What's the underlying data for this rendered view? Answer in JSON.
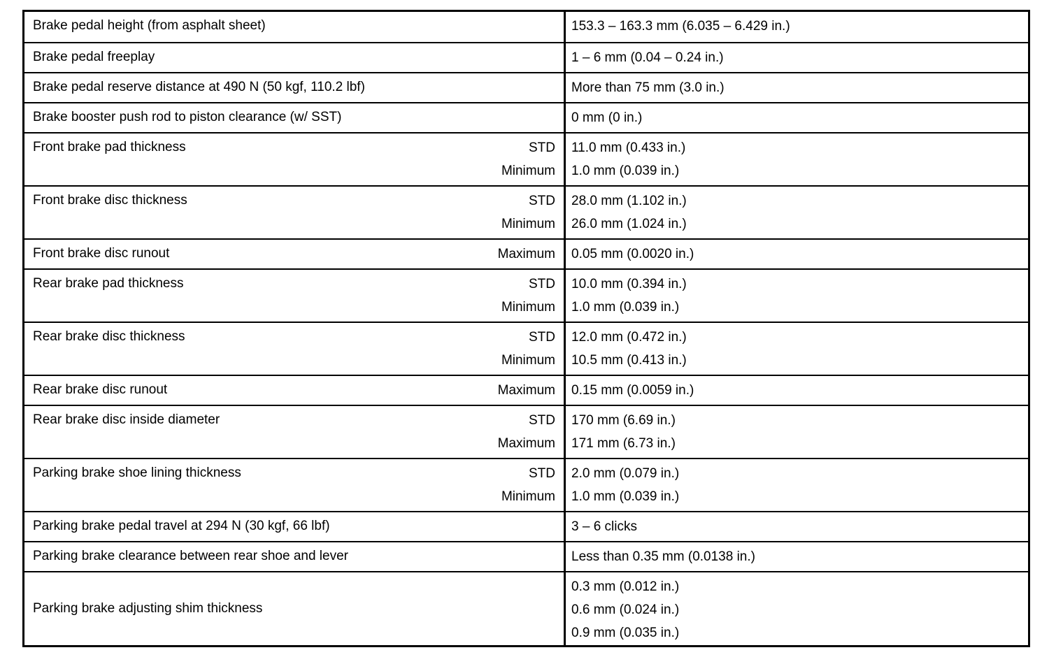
{
  "rows": [
    {
      "label": "Brake pedal height (from asphalt sheet)",
      "qualifiers": [],
      "values": [
        "153.3 – 163.3 mm (6.035 – 6.429 in.)"
      ]
    },
    {
      "label": "Brake pedal freeplay",
      "qualifiers": [],
      "values": [
        "1 – 6 mm (0.04 – 0.24 in.)"
      ]
    },
    {
      "label": "Brake pedal reserve distance at 490 N (50 kgf, 110.2 lbf)",
      "qualifiers": [],
      "values": [
        "More than 75 mm (3.0 in.)"
      ]
    },
    {
      "label": "Brake booster push rod to piston clearance (w/ SST)",
      "qualifiers": [],
      "values": [
        "0 mm (0 in.)"
      ]
    },
    {
      "label": "Front brake pad thickness",
      "qualifiers": [
        "STD",
        "Minimum"
      ],
      "values": [
        "11.0 mm (0.433 in.)",
        "1.0 mm (0.039 in.)"
      ]
    },
    {
      "label": "Front brake disc thickness",
      "qualifiers": [
        "STD",
        "Minimum"
      ],
      "values": [
        "28.0 mm (1.102 in.)",
        "26.0 mm (1.024 in.)"
      ]
    },
    {
      "label": "Front brake disc runout",
      "qualifiers": [
        "Maximum"
      ],
      "values": [
        "0.05 mm (0.0020 in.)"
      ]
    },
    {
      "label": "Rear brake pad thickness",
      "qualifiers": [
        "STD",
        "Minimum"
      ],
      "values": [
        "10.0 mm (0.394 in.)",
        "1.0 mm (0.039 in.)"
      ]
    },
    {
      "label": "Rear brake disc thickness",
      "qualifiers": [
        "STD",
        "Minimum"
      ],
      "values": [
        "12.0 mm (0.472 in.)",
        "10.5 mm (0.413 in.)"
      ]
    },
    {
      "label": "Rear brake disc runout",
      "qualifiers": [
        "Maximum"
      ],
      "values": [
        "0.15 mm (0.0059 in.)"
      ]
    },
    {
      "label": "Rear brake disc inside diameter",
      "qualifiers": [
        "STD",
        "Maximum"
      ],
      "values": [
        "170 mm (6.69 in.)",
        "171 mm (6.73 in.)"
      ]
    },
    {
      "label": "Parking brake shoe lining thickness",
      "qualifiers": [
        "STD",
        "Minimum"
      ],
      "values": [
        "2.0 mm (0.079 in.)",
        "1.0 mm (0.039 in.)"
      ]
    },
    {
      "label": "Parking brake pedal travel at 294 N (30 kgf, 66 lbf)",
      "qualifiers": [],
      "values": [
        "3 – 6 clicks"
      ]
    },
    {
      "label": "Parking brake clearance between rear shoe and lever",
      "qualifiers": [],
      "values": [
        "Less than 0.35 mm (0.0138 in.)"
      ]
    },
    {
      "label": "Parking brake adjusting shim thickness",
      "qualifiers": [],
      "values": [
        "0.3 mm (0.012 in.)",
        "0.6 mm (0.024 in.)",
        "0.9 mm (0.035 in.)"
      ]
    }
  ]
}
